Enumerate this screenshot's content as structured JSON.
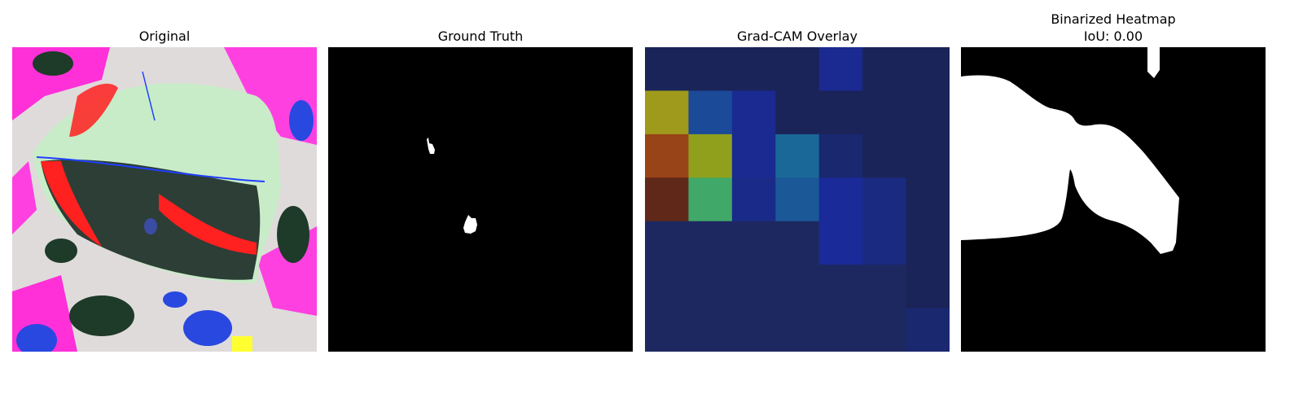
{
  "panels": [
    {
      "title": "Original"
    },
    {
      "title": "Ground Truth"
    },
    {
      "title": "Grad-CAM Overlay"
    },
    {
      "title": "Binarized Heatmap",
      "subtitle": "IoU: 0.00"
    }
  ],
  "colors": {
    "background": "#ffffff",
    "mask_foreground": "#ffffff",
    "mask_background": "#000000",
    "heatmap_low": "#1c2558",
    "heatmap_high": "#e0a020"
  },
  "gradcam_grid": [
    [
      "#1a2458",
      "#1a2458",
      "#1a2458",
      "#1a2458",
      "#1a2a90",
      "#1a2458",
      "#1a2458"
    ],
    [
      "#a09a1c",
      "#1a4a98",
      "#1a2a90",
      "#1a2458",
      "#1a2458",
      "#1a2458",
      "#1a2458"
    ],
    [
      "#984418",
      "#90a01c",
      "#1a2a90",
      "#1a6898",
      "#1a2870",
      "#1a2458",
      "#1a2458"
    ],
    [
      "#602818",
      "#40a868",
      "#1a2a88",
      "#1a5898",
      "#1a2a98",
      "#1a2a80",
      "#1a2458"
    ],
    [
      "#1e2860",
      "#1e2860",
      "#1e2860",
      "#1e2860",
      "#1a2a98",
      "#1a2a80",
      "#1a2458"
    ],
    [
      "#1e2860",
      "#1e2860",
      "#1e2860",
      "#1e2860",
      "#1e2860",
      "#1e2860",
      "#1a2458"
    ],
    [
      "#1e2860",
      "#1e2860",
      "#1e2860",
      "#1e2860",
      "#1e2860",
      "#1e2860",
      "#1a2870"
    ]
  ]
}
